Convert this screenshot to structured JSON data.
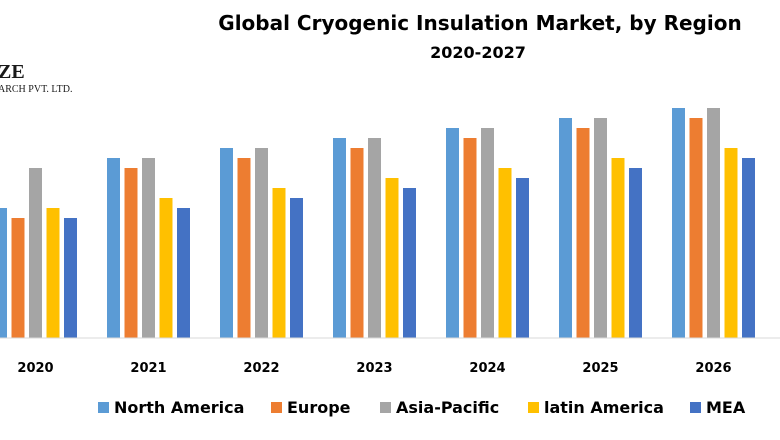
{
  "logo": {
    "line1": "ZE",
    "line2": "ARCH PVT. LTD."
  },
  "chart_data": {
    "type": "bar",
    "title": "Global Cryogenic Insulation Market, by Region",
    "subtitle": "2020-2027",
    "xlabel": "",
    "ylabel": "",
    "categories": [
      "2020",
      "2021",
      "2022",
      "2023",
      "2024",
      "2025",
      "2026"
    ],
    "ylim": [
      0,
      25
    ],
    "grid": false,
    "legend_position": "bottom",
    "series": [
      {
        "name": "North America",
        "color": "#5B9BD5",
        "values": [
          13,
          18,
          19,
          20,
          21,
          22,
          23
        ]
      },
      {
        "name": "Europe",
        "color": "#ED7D31",
        "values": [
          12,
          17,
          18,
          19,
          20,
          21,
          22
        ]
      },
      {
        "name": "Asia-Pacific",
        "color": "#A5A5A5",
        "values": [
          17,
          18,
          19,
          20,
          21,
          22,
          23
        ]
      },
      {
        "name": "latin America",
        "color": "#FFC000",
        "values": [
          13,
          14,
          15,
          16,
          17,
          18,
          19
        ]
      },
      {
        "name": "MEA",
        "color": "#4472C4",
        "values": [
          12,
          13,
          14,
          15,
          16,
          17,
          18
        ]
      }
    ]
  }
}
